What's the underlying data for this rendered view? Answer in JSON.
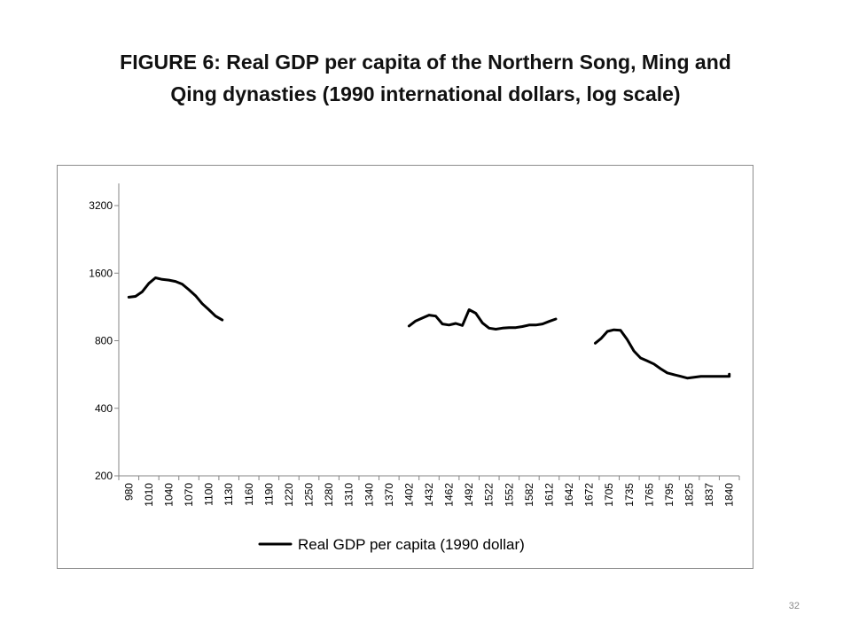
{
  "slide": {
    "title_line1": "FIGURE 6: Real GDP per capita of the Northern Song, Ming and",
    "title_line2": "Qing dynasties (1990 international dollars, log scale)",
    "page_number": "32"
  },
  "chart_data": {
    "type": "line",
    "title": "",
    "xlabel": "",
    "ylabel": "",
    "y_scale": "log2",
    "ylim": [
      200,
      3200
    ],
    "y_ticks": [
      200,
      400,
      800,
      1600,
      3200
    ],
    "y_tick_labels": [
      "200",
      "400",
      "800",
      "1600",
      "3200"
    ],
    "x_tick_labels": [
      "980",
      "1010",
      "1040",
      "1070",
      "1100",
      "1130",
      "1160",
      "1190",
      "1220",
      "1250",
      "1280",
      "1310",
      "1340",
      "1370",
      "1402",
      "1432",
      "1462",
      "1492",
      "1522",
      "1552",
      "1582",
      "1612",
      "1642",
      "1672",
      "1705",
      "1735",
      "1765",
      "1795",
      "1825",
      "1837",
      "1840"
    ],
    "grid": false,
    "legend_position": "bottom",
    "line_color": "#000000",
    "series": [
      {
        "name": "Real GDP per capita (1990 dollar)",
        "segments": [
          {
            "x": [
              980,
              990,
              1000,
              1010,
              1020,
              1030,
              1040,
              1050,
              1060,
              1070,
              1080,
              1090,
              1100,
              1110,
              1120
            ],
            "y": [
              1250,
              1260,
              1320,
              1440,
              1525,
              1500,
              1490,
              1470,
              1430,
              1350,
              1270,
              1170,
              1100,
              1030,
              990
            ]
          },
          {
            "x": [
              1402,
              1412,
              1422,
              1432,
              1442,
              1452,
              1462,
              1472,
              1482,
              1492,
              1502,
              1512,
              1522,
              1532,
              1542,
              1552,
              1562,
              1572,
              1582,
              1592,
              1602,
              1612,
              1622
            ],
            "y": [
              930,
              980,
              1010,
              1040,
              1030,
              950,
              940,
              955,
              935,
              1100,
              1060,
              960,
              910,
              900,
              910,
              915,
              915,
              925,
              940,
              940,
              950,
              975,
              1000
            ]
          },
          {
            "x": [
              1682,
              1692,
              1702,
              1712,
              1722,
              1732,
              1742,
              1752,
              1762,
              1772,
              1782,
              1792,
              1802,
              1812,
              1822,
              1832,
              1842,
              1852,
              1862,
              1872,
              1882,
              1892
            ],
            "y": [
              780,
              820,
              880,
              895,
              890,
              810,
              720,
              670,
              650,
              630,
              600,
              575,
              565,
              555,
              545,
              555,
              555,
              558,
              560,
              565,
              568,
              568
            ]
          }
        ]
      }
    ]
  }
}
